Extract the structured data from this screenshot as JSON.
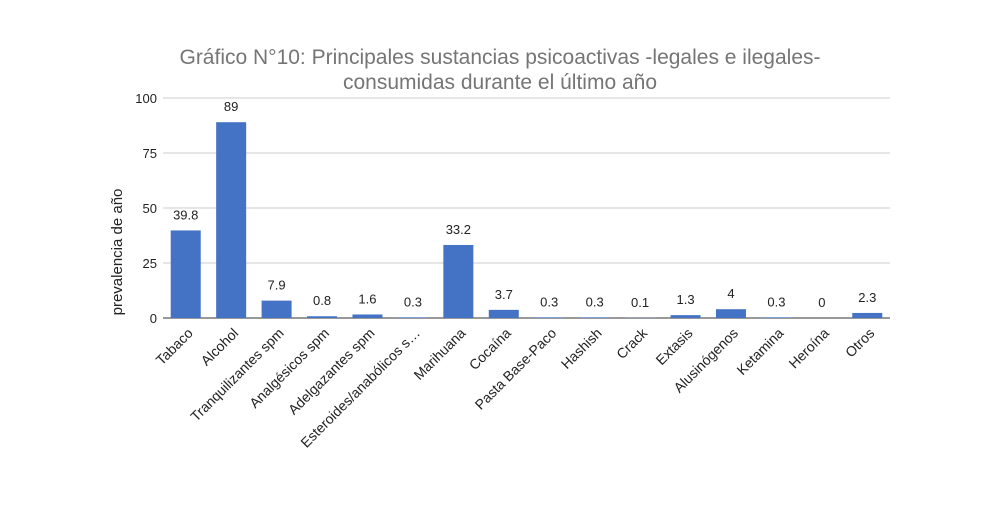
{
  "chart_data": {
    "type": "bar",
    "title": [
      "Gráfico N°10: Principales sustancias psicoactivas -legales e ilegales-",
      "consumidas durante el último año"
    ],
    "xlabel": "",
    "ylabel": "prevalencia de año",
    "ylim": [
      0,
      100
    ],
    "yticks": [
      0,
      25,
      50,
      75,
      100
    ],
    "grid": true,
    "bar_color": "#4472c4",
    "categories": [
      "Tabaco",
      "Alcohol",
      "Tranquilizantes spm",
      "Analgésicos spm",
      "Adelgazantes spm",
      "Esteroides/anabólicos s…",
      "Marihuana",
      "Cocaína",
      "Pasta Base-Paco",
      "Hashish",
      "Crack",
      "Extasis",
      "Alusinógenos",
      "Ketamina",
      "Heroína",
      "Otros"
    ],
    "values": [
      39.8,
      89,
      7.9,
      0.8,
      1.6,
      0.3,
      33.2,
      3.7,
      0.3,
      0.3,
      0.1,
      1.3,
      4,
      0.3,
      0,
      2.3
    ]
  }
}
